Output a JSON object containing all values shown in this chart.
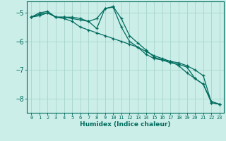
{
  "xlabel": "Humidex (Indice chaleur)",
  "ylabel": "",
  "background_color": "#cceee8",
  "grid_color": "#aad8d2",
  "line_color": "#006b5e",
  "xlim": [
    -0.5,
    23.5
  ],
  "ylim": [
    -8.5,
    -4.6
  ],
  "yticks": [
    -8,
    -7,
    -6,
    -5
  ],
  "xticks": [
    0,
    1,
    2,
    3,
    4,
    5,
    6,
    7,
    8,
    9,
    10,
    11,
    12,
    13,
    14,
    15,
    16,
    17,
    18,
    19,
    20,
    21,
    22,
    23
  ],
  "series": [
    {
      "x": [
        0,
        1,
        2,
        3,
        4,
        5,
        6,
        7,
        8,
        9,
        10,
        11,
        12,
        13,
        14,
        15,
        16,
        17,
        18,
        19,
        20,
        21,
        22,
        23
      ],
      "y": [
        -5.15,
        -5.05,
        -5.0,
        -5.15,
        -5.15,
        -5.15,
        -5.2,
        -5.3,
        -5.55,
        -4.85,
        -4.78,
        -5.2,
        -5.8,
        -6.05,
        -6.3,
        -6.55,
        -6.65,
        -6.7,
        -6.85,
        -7.1,
        -7.3,
        -7.5,
        -8.15,
        -8.2
      ]
    },
    {
      "x": [
        0,
        1,
        2,
        3,
        4,
        5,
        6,
        7,
        8,
        9,
        10,
        11,
        12,
        13,
        14,
        15,
        16,
        17,
        18,
        19,
        20,
        21,
        22,
        23
      ],
      "y": [
        -5.15,
        -5.1,
        -5.0,
        -5.15,
        -5.2,
        -5.3,
        -5.5,
        -5.6,
        -5.7,
        -5.8,
        -5.9,
        -6.0,
        -6.1,
        -6.2,
        -6.35,
        -6.5,
        -6.6,
        -6.7,
        -6.75,
        -6.85,
        -7.0,
        -7.2,
        -8.15,
        -8.2
      ]
    },
    {
      "x": [
        0,
        1,
        2,
        3,
        4,
        5,
        6,
        7,
        8,
        9,
        10,
        11,
        12,
        13,
        14,
        15,
        16,
        17,
        18,
        19,
        20,
        21,
        22,
        23
      ],
      "y": [
        -5.15,
        -5.0,
        -4.95,
        -5.15,
        -5.15,
        -5.2,
        -5.25,
        -5.3,
        -5.2,
        -4.85,
        -4.8,
        -5.5,
        -6.0,
        -6.2,
        -6.45,
        -6.6,
        -6.65,
        -6.75,
        -6.8,
        -6.9,
        -7.3,
        -7.5,
        -8.1,
        -8.2
      ]
    }
  ]
}
